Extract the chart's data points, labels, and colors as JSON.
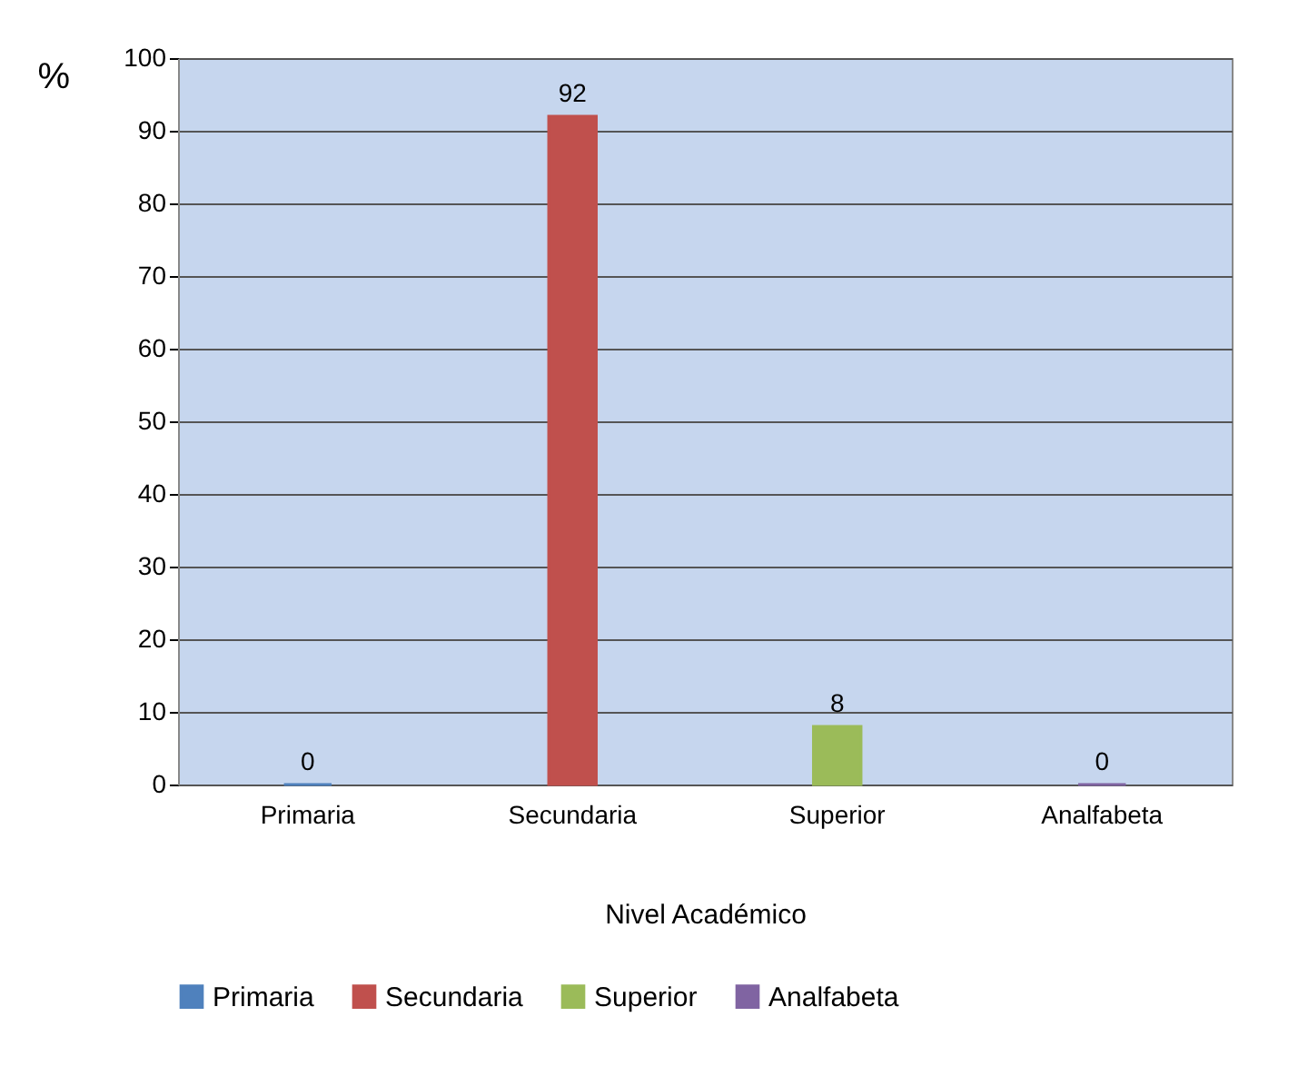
{
  "chart_data": {
    "type": "bar",
    "xlabel": "Nivel Académico",
    "ylabel": "%",
    "categories": [
      "Primaria",
      "Secundaria",
      "Superior",
      "Analfabeta"
    ],
    "series": [
      {
        "name": "Primaria",
        "color": "#4f81bd",
        "values": [
          0,
          null,
          null,
          null
        ]
      },
      {
        "name": "Secundaria",
        "color": "#c0504d",
        "values": [
          null,
          92,
          null,
          null
        ]
      },
      {
        "name": "Superior",
        "color": "#9bbb59",
        "values": [
          null,
          null,
          8,
          null
        ]
      },
      {
        "name": "Analfabeta",
        "color": "#8064a2",
        "values": [
          null,
          null,
          null,
          0
        ]
      }
    ],
    "ylim": [
      0,
      100
    ],
    "yticks": [
      0,
      10,
      20,
      30,
      40,
      50,
      60,
      70,
      80,
      90,
      100
    ],
    "grid": "y",
    "data_labels": true,
    "legend": "bottom"
  }
}
